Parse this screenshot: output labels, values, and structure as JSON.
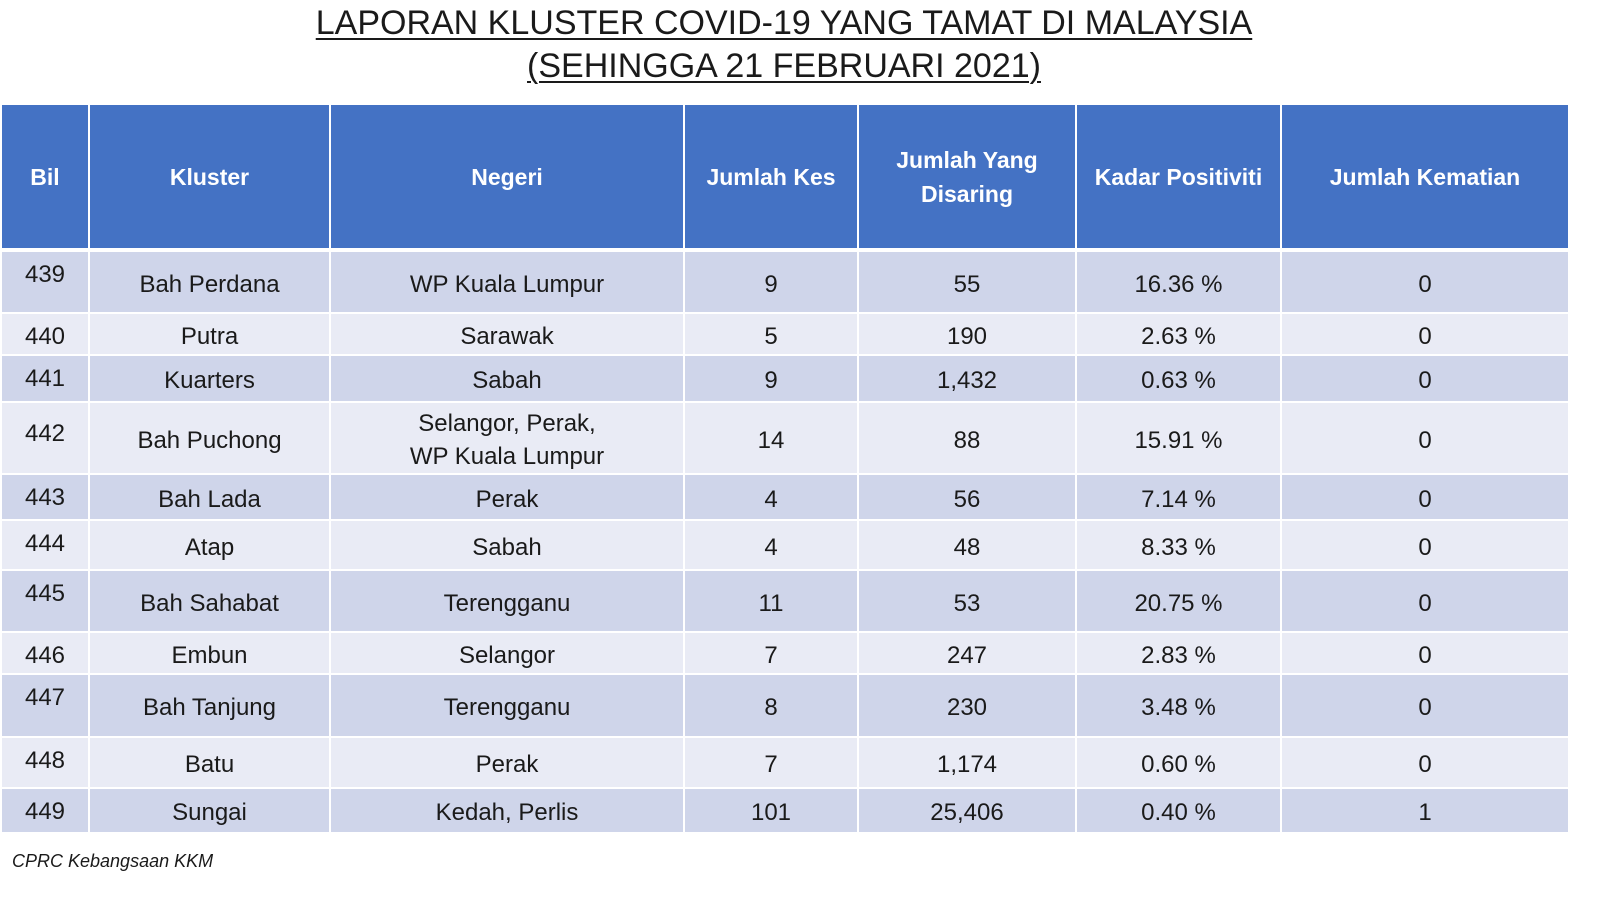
{
  "title": {
    "line1": "LAPORAN KLUSTER COVID-19 YANG TAMAT DI MALAYSIA",
    "line2": "(SEHINGGA 21 FEBRUARI 2021)"
  },
  "table": {
    "headers": {
      "bil": "Bil",
      "kluster": "Kluster",
      "negeri": "Negeri",
      "jumlah_kes": "Jumlah Kes",
      "jumlah_disaring_line1": "Jumlah Yang",
      "jumlah_disaring_line2": "Disaring",
      "kadar_positiviti": "Kadar Positiviti",
      "jumlah_kematian": "Jumlah Kematian"
    },
    "rows": [
      {
        "bil": "439",
        "kluster": "Bah Perdana",
        "negeri_line1": "WP Kuala Lumpur",
        "negeri_line2": "",
        "kes": "9",
        "disaring": "55",
        "positiviti": "16.36 %",
        "kematian": "0"
      },
      {
        "bil": "440",
        "kluster": "Putra",
        "negeri_line1": "Sarawak",
        "negeri_line2": "",
        "kes": "5",
        "disaring": "190",
        "positiviti": "2.63 %",
        "kematian": "0"
      },
      {
        "bil": "441",
        "kluster": "Kuarters",
        "negeri_line1": "Sabah",
        "negeri_line2": "",
        "kes": "9",
        "disaring": "1,432",
        "positiviti": "0.63 %",
        "kematian": "0"
      },
      {
        "bil": "442",
        "kluster": "Bah Puchong",
        "negeri_line1": "Selangor, Perak,",
        "negeri_line2": "WP Kuala Lumpur",
        "kes": "14",
        "disaring": "88",
        "positiviti": "15.91 %",
        "kematian": "0"
      },
      {
        "bil": "443",
        "kluster": "Bah Lada",
        "negeri_line1": "Perak",
        "negeri_line2": "",
        "kes": "4",
        "disaring": "56",
        "positiviti": "7.14 %",
        "kematian": "0"
      },
      {
        "bil": "444",
        "kluster": "Atap",
        "negeri_line1": "Sabah",
        "negeri_line2": "",
        "kes": "4",
        "disaring": "48",
        "positiviti": "8.33 %",
        "kematian": "0"
      },
      {
        "bil": "445",
        "kluster": "Bah Sahabat",
        "negeri_line1": "Terengganu",
        "negeri_line2": "",
        "kes": "11",
        "disaring": "53",
        "positiviti": "20.75 %",
        "kematian": "0"
      },
      {
        "bil": "446",
        "kluster": "Embun",
        "negeri_line1": "Selangor",
        "negeri_line2": "",
        "kes": "7",
        "disaring": "247",
        "positiviti": "2.83 %",
        "kematian": "0"
      },
      {
        "bil": "447",
        "kluster": "Bah Tanjung",
        "negeri_line1": "Terengganu",
        "negeri_line2": "",
        "kes": "8",
        "disaring": "230",
        "positiviti": "3.48 %",
        "kematian": "0"
      },
      {
        "bil": "448",
        "kluster": "Batu",
        "negeri_line1": "Perak",
        "negeri_line2": "",
        "kes": "7",
        "disaring": "1,174",
        "positiviti": "0.60 %",
        "kematian": "0"
      },
      {
        "bil": "449",
        "kluster": "Sungai",
        "negeri_line1": "Kedah, Perlis",
        "negeri_line2": "",
        "kes": "101",
        "disaring": "25,406",
        "positiviti": "0.40 %",
        "kematian": "1"
      }
    ]
  },
  "footer": {
    "source": "CPRC Kebangsaan KKM"
  },
  "colors": {
    "header_bg": "#4472c4",
    "row_dark": "#cfd5ea",
    "row_light": "#e9ebf5"
  }
}
